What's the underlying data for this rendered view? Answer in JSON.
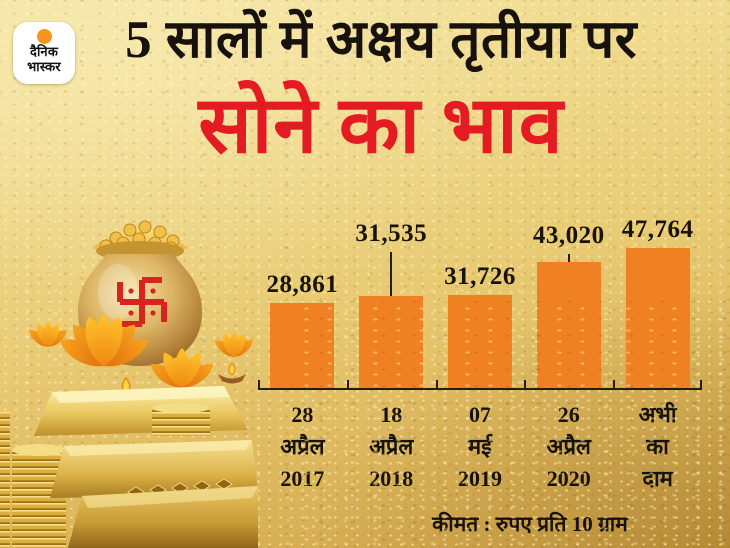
{
  "brand": {
    "logo_line1": "दैनिक",
    "logo_line2": "भास्कर"
  },
  "header": {
    "title": "5 सालों में अक्षय तृतीया पर",
    "subtitle": "सोने का भाव"
  },
  "colors": {
    "bar": "#f08122",
    "accent_red": "#e41b22",
    "text_black": "#17120c",
    "background_gold": "#e8cb74"
  },
  "chart_data": {
    "type": "bar",
    "title": "5 सालों में अक्षय तृतीया पर",
    "subtitle": "सोने का भाव",
    "note": "कीमत : रुपए प्रति 10 ग्राम",
    "unit": "रुपए प्रति 10 ग्राम",
    "categories": [
      "28 अप्रैल 2017",
      "18 अप्रैल 2018",
      "07 मई 2019",
      "26 अप्रैल 2020",
      "अभी का दाम"
    ],
    "category_lines": [
      "28\nअप्रैल\n2017",
      "18\nअप्रैल\n2018",
      "07\nमई\n2019",
      "26\nअप्रैल\n2020",
      "अभी\nका\nदाम"
    ],
    "values": [
      28861,
      31535,
      31726,
      43020,
      47764
    ],
    "value_labels": [
      "28,861",
      "31,535",
      "31,726",
      "43,020",
      "47,764"
    ],
    "connector_heights": [
      0,
      44,
      0,
      8,
      0
    ],
    "ylim": [
      0,
      47764
    ],
    "bar_color": "#f08122",
    "grid": false,
    "legend": "none"
  },
  "decorations": {
    "pot": "gold-pot-with-coins-and-swastika",
    "flowers": "orange-lotus-flowers-with-diyas",
    "bars": "gold-bars-and-coin-stacks"
  }
}
